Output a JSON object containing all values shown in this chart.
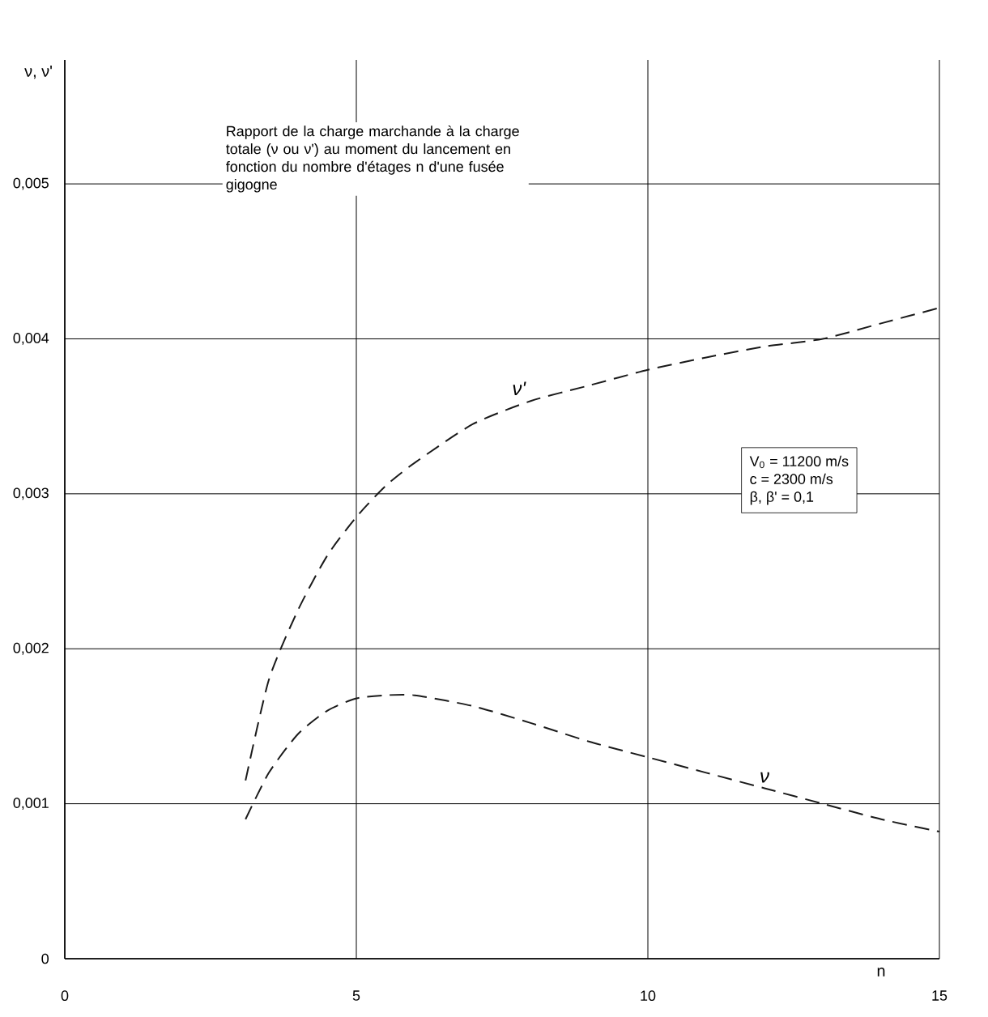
{
  "chart_data": {
    "type": "line",
    "title": "Rapport de la charge marchande à la charge totale (ν ou ν') au moment du lancement en fonction du nombre d'étages n d'une fusée gigogne",
    "xlabel": "n",
    "ylabel": "ν, ν'",
    "annotations": [
      "V$_{0}$ = 11200 m/s",
      "c = 2300 m/s",
      "β, β' = 0,1"
    ],
    "x": [
      3.1,
      3.5,
      4,
      4.5,
      5,
      5.5,
      6,
      7,
      8,
      9,
      10,
      11,
      12,
      13,
      14,
      15
    ],
    "series": [
      {
        "name": "ν'",
        "color": "#1a1a1a",
        "values": [
          0.00115,
          0.0018,
          0.00225,
          0.0026,
          0.00285,
          0.00305,
          0.0032,
          0.00345,
          0.0036,
          0.0037,
          0.0038,
          0.00388,
          0.00395,
          0.004,
          0.0041,
          0.0042
        ]
      },
      {
        "name": "ν",
        "color": "#1a1a1a",
        "values": [
          0.0009,
          0.0012,
          0.00145,
          0.0016,
          0.00168,
          0.0017,
          0.0017,
          0.00163,
          0.00152,
          0.0014,
          0.0013,
          0.0012,
          0.0011,
          0.001,
          0.0009,
          0.00082
        ]
      }
    ],
    "xlim": [
      0,
      15
    ],
    "ylim": [
      0,
      0.0058
    ],
    "xticks": [
      0,
      5,
      10,
      15
    ],
    "yticks": [
      0,
      {
        "value": 0.001,
        "label": "0,001"
      },
      {
        "value": 0.002,
        "label": "0,002"
      },
      {
        "value": 0.003,
        "label": "0,003"
      },
      {
        "value": 0.004,
        "label": "0,004"
      },
      {
        "value": 0.005,
        "label": "0,005"
      }
    ],
    "grid": true,
    "legend": false,
    "marker": "none",
    "line_style": "dashed"
  }
}
